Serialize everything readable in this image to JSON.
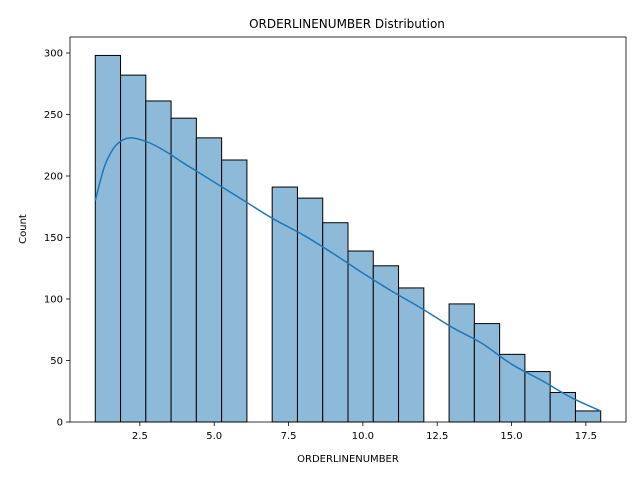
{
  "chart_data": {
    "type": "bar",
    "title": "ORDERLINENUMBER Distribution",
    "xlabel": "ORDERLINENUMBER",
    "ylabel": "Count",
    "xlim": [
      0.15,
      18.85
    ],
    "ylim": [
      0,
      313
    ],
    "xticks": [
      2.5,
      5.0,
      7.5,
      10.0,
      12.5,
      15.0,
      17.5
    ],
    "xtick_labels": [
      "2.5",
      "5.0",
      "7.5",
      "10.0",
      "12.5",
      "15.0",
      "17.5"
    ],
    "yticks": [
      0,
      50,
      100,
      150,
      200,
      250,
      300
    ],
    "ytick_labels": [
      "0",
      "50",
      "100",
      "150",
      "200",
      "250",
      "300"
    ],
    "bins": [
      {
        "start": 1.0,
        "end": 1.85,
        "count": 298
      },
      {
        "start": 1.85,
        "end": 2.7,
        "count": 282
      },
      {
        "start": 2.7,
        "end": 3.55,
        "count": 261
      },
      {
        "start": 3.55,
        "end": 4.4,
        "count": 247
      },
      {
        "start": 4.4,
        "end": 5.25,
        "count": 231
      },
      {
        "start": 5.25,
        "end": 6.1,
        "count": 213
      },
      {
        "start": 6.1,
        "end": 6.95,
        "count": 0
      },
      {
        "start": 6.95,
        "end": 7.8,
        "count": 191
      },
      {
        "start": 7.8,
        "end": 8.65,
        "count": 182
      },
      {
        "start": 8.65,
        "end": 9.5,
        "count": 162
      },
      {
        "start": 9.5,
        "end": 10.35,
        "count": 139
      },
      {
        "start": 10.35,
        "end": 11.2,
        "count": 127
      },
      {
        "start": 11.2,
        "end": 12.05,
        "count": 109
      },
      {
        "start": 12.05,
        "end": 12.9,
        "count": 0
      },
      {
        "start": 12.9,
        "end": 13.75,
        "count": 96
      },
      {
        "start": 13.75,
        "end": 14.6,
        "count": 80
      },
      {
        "start": 14.6,
        "end": 15.45,
        "count": 55
      },
      {
        "start": 15.45,
        "end": 16.3,
        "count": 41
      },
      {
        "start": 16.3,
        "end": 17.15,
        "count": 24
      },
      {
        "start": 17.15,
        "end": 18.0,
        "count": 9
      }
    ],
    "kde": {
      "x": [
        1.0,
        1.3,
        1.6,
        1.9,
        2.2,
        2.6,
        3.0,
        3.5,
        4.0,
        5.0,
        6.0,
        7.0,
        8.0,
        9.0,
        10.0,
        11.0,
        12.0,
        13.0,
        14.0,
        15.0,
        16.0,
        17.0,
        18.0
      ],
      "y": [
        180,
        207,
        222,
        229,
        231,
        229,
        225,
        218,
        210,
        195,
        180,
        165,
        152,
        137,
        121,
        106,
        92,
        77,
        64,
        47,
        34,
        20,
        9
      ]
    },
    "bar_color": "#8ebad9",
    "bar_edge_color": "#000000",
    "line_color": "#1f77b4",
    "grid": false,
    "legend": null
  }
}
